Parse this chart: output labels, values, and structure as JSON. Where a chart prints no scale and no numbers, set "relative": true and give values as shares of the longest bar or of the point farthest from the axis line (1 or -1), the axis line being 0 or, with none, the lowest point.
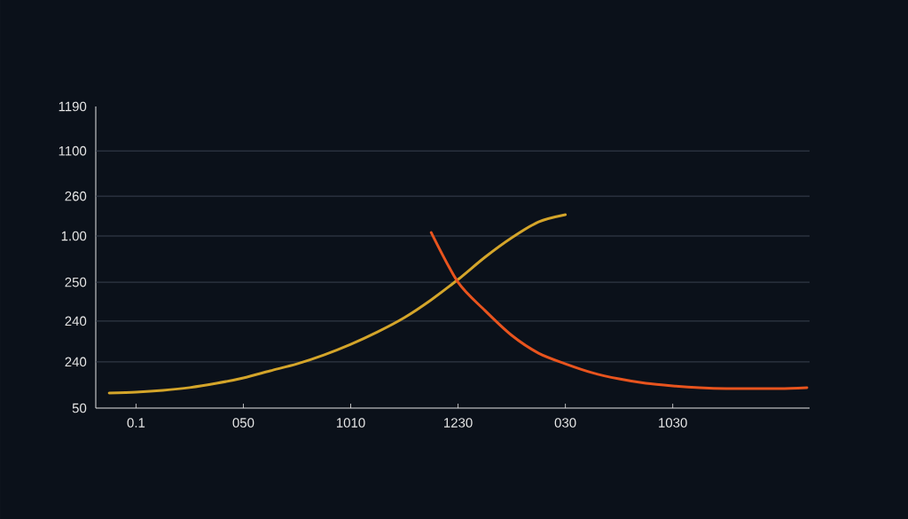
{
  "chart_data": {
    "type": "line",
    "relative": true,
    "grid": "y",
    "categories": [
      null,
      "0.1",
      null,
      null,
      null,
      "050",
      null,
      null,
      null,
      "1010",
      null,
      null,
      null,
      "1230",
      null,
      null,
      null,
      "030",
      null,
      null,
      null,
      "1030",
      null,
      null,
      null,
      null,
      null
    ],
    "annotations": [
      "50",
      "240",
      "240",
      "250",
      "1.00",
      "260",
      "1100",
      "1190"
    ],
    "series": [
      {
        "color": "#d4a52a",
        "values": [
          0.078,
          0.083,
          0.092,
          0.106,
          0.128,
          0.156,
          0.193,
          0.229,
          0.275,
          0.33,
          0.394,
          0.468,
          0.56,
          0.665,
          0.78,
          0.881,
          0.963,
          1,
          null,
          null,
          null,
          null,
          null,
          null,
          null,
          null,
          null
        ]
      },
      {
        "color": "#e8541e",
        "values": [
          null,
          null,
          null,
          null,
          null,
          null,
          null,
          null,
          null,
          null,
          null,
          null,
          0.908,
          0.651,
          0.505,
          0.376,
          0.284,
          0.229,
          0.183,
          0.151,
          0.128,
          0.115,
          0.106,
          0.101,
          0.101,
          0.101,
          0.106
        ]
      }
    ]
  }
}
